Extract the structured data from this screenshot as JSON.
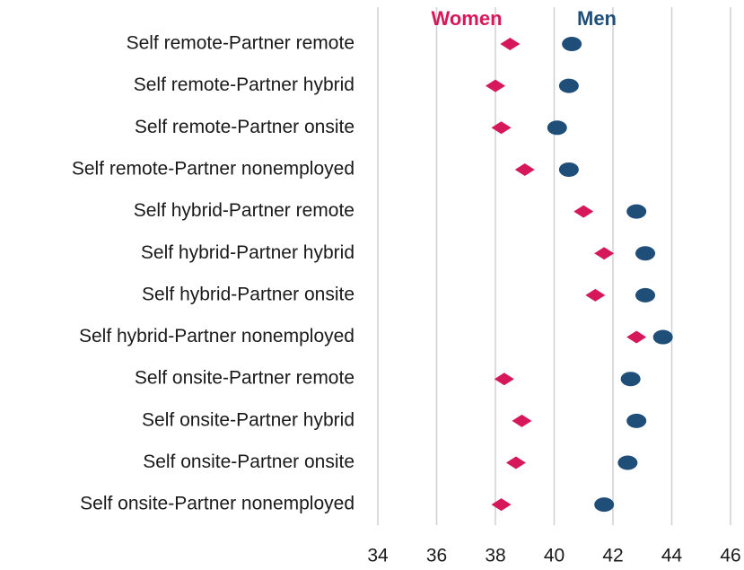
{
  "chart_data": {
    "type": "dot",
    "categories": [
      "Self remote-Partner remote",
      "Self remote-Partner hybrid",
      "Self remote-Partner onsite",
      "Self remote-Partner nonemployed",
      "Self hybrid-Partner remote",
      "Self hybrid-Partner hybrid",
      "Self hybrid-Partner onsite",
      "Self hybrid-Partner nonemployed",
      "Self onsite-Partner remote",
      "Self onsite-Partner hybrid",
      "Self onsite-Partner onsite",
      "Self onsite-Partner nonemployed"
    ],
    "series": [
      {
        "name": "Women",
        "color": "#d6185a",
        "marker": "diamond",
        "values": [
          38.5,
          38.0,
          38.2,
          39.0,
          41.0,
          41.7,
          41.4,
          42.8,
          38.3,
          38.9,
          38.7,
          38.2
        ]
      },
      {
        "name": "Men",
        "color": "#1f4e79",
        "marker": "ellipse",
        "values": [
          40.6,
          40.5,
          40.1,
          40.5,
          42.8,
          43.1,
          43.1,
          43.7,
          42.6,
          42.8,
          42.5,
          41.7
        ]
      }
    ],
    "xlim": [
      34,
      46
    ],
    "xticks": [
      34,
      36,
      38,
      40,
      42,
      44,
      46
    ],
    "grid": true
  }
}
